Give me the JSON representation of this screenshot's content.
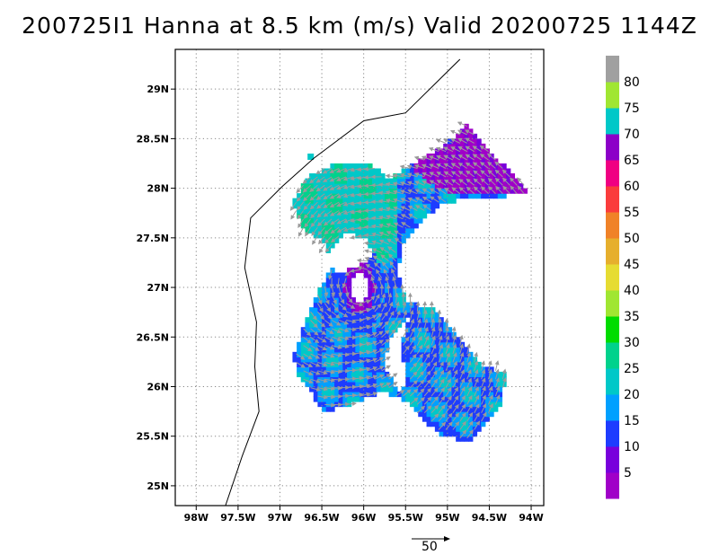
{
  "title": "200725I1 Hanna at 8.5 km (m/s) Valid 20200725 1144Z",
  "map": {
    "lon_range": [
      -98.25,
      -93.85
    ],
    "lat_range": [
      24.8,
      29.4
    ],
    "lon_ticks": [
      {
        "v": -98.0,
        "label": "98W"
      },
      {
        "v": -97.5,
        "label": "97.5W"
      },
      {
        "v": -97.0,
        "label": "97W"
      },
      {
        "v": -96.5,
        "label": "96.5W"
      },
      {
        "v": -96.0,
        "label": "96W"
      },
      {
        "v": -95.5,
        "label": "95.5W"
      },
      {
        "v": -95.0,
        "label": "95W"
      },
      {
        "v": -94.5,
        "label": "94.5W"
      },
      {
        "v": -94.0,
        "label": "94W"
      }
    ],
    "lat_ticks": [
      {
        "v": 25.0,
        "label": "25N"
      },
      {
        "v": 25.5,
        "label": "25.5N"
      },
      {
        "v": 26.0,
        "label": "26N"
      },
      {
        "v": 26.5,
        "label": "26.5N"
      },
      {
        "v": 27.0,
        "label": "27N"
      },
      {
        "v": 27.5,
        "label": "27.5N"
      },
      {
        "v": 28.0,
        "label": "28N"
      },
      {
        "v": 28.5,
        "label": "28.5N"
      },
      {
        "v": 29.0,
        "label": "29N"
      }
    ],
    "grid": true,
    "coastline": [
      [
        -97.65,
        24.8
      ],
      [
        -97.45,
        25.3
      ],
      [
        -97.25,
        25.75
      ],
      [
        -97.3,
        26.2
      ],
      [
        -97.28,
        26.65
      ],
      [
        -97.42,
        27.2
      ],
      [
        -97.35,
        27.7
      ],
      [
        -96.97,
        28.02
      ],
      [
        -96.6,
        28.3
      ],
      [
        -96.0,
        28.68
      ],
      [
        -95.5,
        28.76
      ],
      [
        -94.85,
        29.3
      ]
    ],
    "storm_center": [
      -96.05,
      27.0
    ],
    "eye_radius_deg": [
      0.11,
      0.17
    ],
    "wind_region": [
      [
        -96.5,
        27.5
      ],
      [
        -96.7,
        27.55
      ],
      [
        -96.85,
        27.85
      ],
      [
        -96.7,
        28.1
      ],
      [
        -96.35,
        28.25
      ],
      [
        -95.95,
        28.25
      ],
      [
        -95.7,
        28.1
      ],
      [
        -95.2,
        28.35
      ],
      [
        -94.95,
        28.5
      ],
      [
        -94.75,
        28.65
      ],
      [
        -94.6,
        28.45
      ],
      [
        -94.35,
        28.25
      ],
      [
        -94.1,
        28.05
      ],
      [
        -94.0,
        27.93
      ],
      [
        -94.6,
        27.92
      ],
      [
        -95.05,
        27.85
      ],
      [
        -95.35,
        27.65
      ],
      [
        -95.55,
        27.4
      ],
      [
        -95.6,
        27.15
      ],
      [
        -95.5,
        26.85
      ],
      [
        -95.2,
        26.8
      ],
      [
        -94.95,
        26.55
      ],
      [
        -94.75,
        26.35
      ],
      [
        -94.6,
        26.2
      ],
      [
        -94.3,
        26.15
      ],
      [
        -94.35,
        25.85
      ],
      [
        -94.6,
        25.6
      ],
      [
        -94.75,
        25.45
      ],
      [
        -95.05,
        25.5
      ],
      [
        -95.35,
        25.7
      ],
      [
        -95.5,
        25.85
      ],
      [
        -95.8,
        25.95
      ],
      [
        -96.2,
        25.8
      ],
      [
        -96.5,
        25.75
      ],
      [
        -96.6,
        25.9
      ],
      [
        -96.75,
        26.05
      ],
      [
        -96.85,
        26.3
      ],
      [
        -96.7,
        26.65
      ],
      [
        -96.55,
        26.95
      ],
      [
        -96.4,
        27.2
      ],
      [
        -96.5,
        27.5
      ]
    ],
    "gap_region": [
      [
        -95.6,
        26.6
      ],
      [
        -95.45,
        26.75
      ],
      [
        -95.55,
        26.45
      ],
      [
        -95.5,
        26.0
      ],
      [
        -95.6,
        25.95
      ],
      [
        -95.75,
        26.2
      ],
      [
        -95.7,
        26.5
      ],
      [
        -95.6,
        26.6
      ]
    ],
    "west_gap_region": [
      [
        -96.35,
        27.15
      ],
      [
        -96.45,
        27.35
      ],
      [
        -96.2,
        27.55
      ],
      [
        -95.95,
        27.5
      ],
      [
        -95.9,
        27.3
      ],
      [
        -96.1,
        27.2
      ],
      [
        -96.35,
        27.15
      ]
    ],
    "purple_region": [
      [
        -95.45,
        28.2
      ],
      [
        -95.2,
        28.4
      ],
      [
        -94.9,
        28.5
      ],
      [
        -94.8,
        28.65
      ],
      [
        -94.65,
        28.5
      ],
      [
        -94.45,
        28.35
      ],
      [
        -94.15,
        28.1
      ],
      [
        -94.05,
        27.95
      ],
      [
        -94.55,
        27.93
      ],
      [
        -94.95,
        27.95
      ],
      [
        -95.2,
        28.05
      ],
      [
        -95.45,
        28.2
      ]
    ]
  },
  "colorbar": {
    "labels": [
      "5",
      "10",
      "15",
      "20",
      "25",
      "30",
      "35",
      "40",
      "45",
      "50",
      "55",
      "60",
      "65",
      "70",
      "75",
      "80"
    ],
    "colors": [
      "#a000c8",
      "#7800dc",
      "#1e3cff",
      "#00a0ff",
      "#00c8c8",
      "#00d28c",
      "#00dc00",
      "#a0e632",
      "#e6dc32",
      "#e6af2d",
      "#f08228",
      "#fa3c3c",
      "#f00082",
      "#8c00c8",
      "#00c8c8",
      "#a0e632",
      "#a0a0a0"
    ]
  },
  "reference_vector": {
    "label": "50",
    "value_ms": 50
  }
}
